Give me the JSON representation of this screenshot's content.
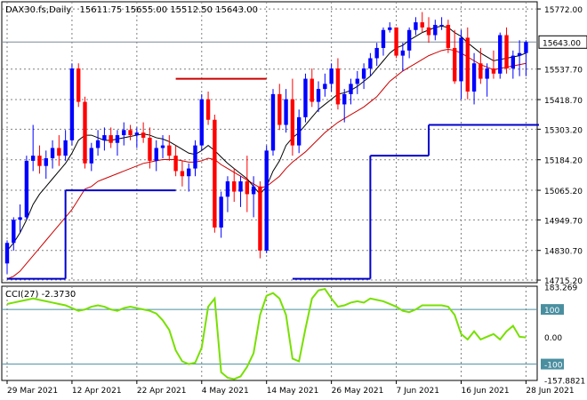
{
  "header": {
    "symbol": "DAX30.fs,Daily",
    "ohlc": "15611.75 15655.00 15512.50 15643.00"
  },
  "colors": {
    "bull": "#0000ff",
    "bear": "#ff0000",
    "ma_fast": "#000000",
    "ma_slow": "#cc0000",
    "support_line": "#0000cc",
    "resistance_line": "#cc0000",
    "cci_line": "#77e000",
    "cci_level": "#4a8fa0",
    "grid": "#808080"
  },
  "chart_data": [
    {
      "type": "candlestick",
      "title": "",
      "y_ticks": [
        15772.0,
        15537.7,
        15418.7,
        15303.2,
        15184.2,
        15065.2,
        14949.7,
        14830.7,
        14715.2
      ],
      "y_tick_labels": [
        "15772.00",
        "15537.70",
        "15418.70",
        "15303.20",
        "15184.20",
        "15065.20",
        "14949.70",
        "14830.70",
        "14715.20"
      ],
      "ylim": [
        14705,
        15800
      ],
      "current_price": 15643.0,
      "current_price_label": "15643.00",
      "x_labels": [
        {
          "bar": 0,
          "label": "29 Mar 2021"
        },
        {
          "bar": 10,
          "label": "12 Apr 2021"
        },
        {
          "bar": 20,
          "label": "22 Apr 2021"
        },
        {
          "bar": 30,
          "label": "4 May 2021"
        },
        {
          "bar": 40,
          "label": "14 May 2021"
        },
        {
          "bar": 50,
          "label": "26 May 2021"
        },
        {
          "bar": 60,
          "label": "7 Jun 2021"
        },
        {
          "bar": 70,
          "label": "16 Jun 2021"
        },
        {
          "bar": 80,
          "label": "28 Jun 2021"
        }
      ],
      "ohlc": [
        [
          14780,
          14870,
          14740,
          14860
        ],
        [
          14860,
          14960,
          14830,
          14950
        ],
        [
          14950,
          15010,
          14900,
          14960
        ],
        [
          14960,
          15200,
          14950,
          15180
        ],
        [
          15180,
          15320,
          15140,
          15200
        ],
        [
          15200,
          15240,
          15130,
          15160
        ],
        [
          15160,
          15220,
          15110,
          15190
        ],
        [
          15190,
          15260,
          15150,
          15230
        ],
        [
          15230,
          15280,
          15160,
          15200
        ],
        [
          15200,
          15300,
          15180,
          15260
        ],
        [
          15260,
          15560,
          15240,
          15540
        ],
        [
          15540,
          15560,
          15390,
          15410
        ],
        [
          15410,
          15430,
          15150,
          15170
        ],
        [
          15170,
          15250,
          15140,
          15230
        ],
        [
          15230,
          15300,
          15200,
          15260
        ],
        [
          15260,
          15310,
          15220,
          15280
        ],
        [
          15280,
          15310,
          15230,
          15250
        ],
        [
          15250,
          15300,
          15200,
          15280
        ],
        [
          15280,
          15330,
          15240,
          15300
        ],
        [
          15300,
          15320,
          15260,
          15280
        ],
        [
          15280,
          15310,
          15230,
          15290
        ],
        [
          15290,
          15330,
          15250,
          15270
        ],
        [
          15270,
          15310,
          15150,
          15180
        ],
        [
          15180,
          15260,
          15140,
          15230
        ],
        [
          15230,
          15280,
          15190,
          15240
        ],
        [
          15240,
          15280,
          15180,
          15200
        ],
        [
          15200,
          15240,
          15120,
          15140
        ],
        [
          15140,
          15180,
          15080,
          15120
        ],
        [
          15120,
          15170,
          15060,
          15150
        ],
        [
          15150,
          15260,
          15120,
          15240
        ],
        [
          15240,
          15440,
          15220,
          15420
        ],
        [
          15420,
          15450,
          15320,
          15340
        ],
        [
          15340,
          15360,
          14900,
          14920
        ],
        [
          14920,
          15060,
          14880,
          15040
        ],
        [
          15040,
          15120,
          14980,
          15100
        ],
        [
          15100,
          15150,
          15020,
          15060
        ],
        [
          15060,
          15120,
          15000,
          15100
        ],
        [
          15100,
          15200,
          14980,
          15050
        ],
        [
          15050,
          15120,
          14960,
          15080
        ],
        [
          15080,
          15100,
          14800,
          14830
        ],
        [
          14830,
          15240,
          14820,
          15220
        ],
        [
          15220,
          15460,
          15200,
          15440
        ],
        [
          15440,
          15480,
          15300,
          15320
        ],
        [
          15320,
          15460,
          15290,
          15420
        ],
        [
          15420,
          15500,
          15200,
          15240
        ],
        [
          15240,
          15380,
          15210,
          15350
        ],
        [
          15350,
          15520,
          15330,
          15500
        ],
        [
          15500,
          15540,
          15390,
          15410
        ],
        [
          15410,
          15490,
          15370,
          15460
        ],
        [
          15460,
          15520,
          15430,
          15480
        ],
        [
          15480,
          15560,
          15450,
          15540
        ],
        [
          15540,
          15580,
          15380,
          15400
        ],
        [
          15400,
          15460,
          15330,
          15440
        ],
        [
          15440,
          15500,
          15400,
          15480
        ],
        [
          15480,
          15530,
          15440,
          15500
        ],
        [
          15500,
          15560,
          15460,
          15540
        ],
        [
          15540,
          15600,
          15510,
          15580
        ],
        [
          15580,
          15640,
          15550,
          15620
        ],
        [
          15620,
          15700,
          15590,
          15690
        ],
        [
          15690,
          15720,
          15680,
          15700
        ],
        [
          15700,
          15700,
          15580,
          15590
        ],
        [
          15590,
          15640,
          15530,
          15610
        ],
        [
          15610,
          15700,
          15580,
          15690
        ],
        [
          15690,
          15740,
          15670,
          15720
        ],
        [
          15720,
          15760,
          15680,
          15700
        ],
        [
          15700,
          15740,
          15640,
          15670
        ],
        [
          15670,
          15730,
          15650,
          15710
        ],
        [
          15710,
          15740,
          15690,
          15710
        ],
        [
          15710,
          15730,
          15600,
          15620
        ],
        [
          15620,
          15690,
          15480,
          15490
        ],
        [
          15490,
          15690,
          15420,
          15660
        ],
        [
          15660,
          15700,
          15420,
          15450
        ],
        [
          15450,
          15600,
          15400,
          15560
        ],
        [
          15560,
          15620,
          15480,
          15500
        ],
        [
          15500,
          15560,
          15430,
          15540
        ],
        [
          15540,
          15610,
          15500,
          15520
        ],
        [
          15520,
          15680,
          15500,
          15670
        ],
        [
          15670,
          15700,
          15520,
          15540
        ],
        [
          15540,
          15610,
          15500,
          15590
        ],
        [
          15590,
          15650,
          15510,
          15600
        ],
        [
          15600,
          15650,
          15510,
          15643
        ]
      ],
      "ma_fast": [
        14830,
        14860,
        14900,
        14950,
        15010,
        15050,
        15080,
        15110,
        15140,
        15170,
        15210,
        15260,
        15280,
        15280,
        15270,
        15260,
        15260,
        15265,
        15270,
        15275,
        15280,
        15285,
        15280,
        15270,
        15265,
        15255,
        15240,
        15225,
        15210,
        15205,
        15220,
        15240,
        15220,
        15195,
        15170,
        15150,
        15130,
        15110,
        15080,
        15050,
        15080,
        15140,
        15180,
        15240,
        15270,
        15290,
        15320,
        15350,
        15380,
        15400,
        15420,
        15440,
        15445,
        15455,
        15470,
        15490,
        15510,
        15540,
        15570,
        15600,
        15620,
        15630,
        15650,
        15665,
        15680,
        15690,
        15700,
        15705,
        15700,
        15680,
        15665,
        15640,
        15620,
        15600,
        15585,
        15570,
        15575,
        15580,
        15585,
        15590,
        15600
      ],
      "ma_slow": [
        14720,
        14730,
        14750,
        14780,
        14810,
        14840,
        14870,
        14900,
        14930,
        14960,
        14990,
        15030,
        15070,
        15080,
        15100,
        15110,
        15120,
        15130,
        15140,
        15150,
        15160,
        15170,
        15175,
        15180,
        15185,
        15185,
        15185,
        15180,
        15175,
        15175,
        15180,
        15190,
        15185,
        15165,
        15150,
        15135,
        15120,
        15105,
        15090,
        15075,
        15080,
        15100,
        15120,
        15150,
        15175,
        15195,
        15215,
        15240,
        15265,
        15290,
        15310,
        15330,
        15345,
        15360,
        15375,
        15390,
        15410,
        15430,
        15460,
        15490,
        15510,
        15530,
        15545,
        15560,
        15575,
        15590,
        15600,
        15610,
        15615,
        15610,
        15600,
        15585,
        15570,
        15555,
        15545,
        15535,
        15540,
        15545,
        15550,
        15555,
        15560
      ],
      "support_line": [
        {
          "from_bar": 0,
          "to_bar": 9,
          "value": 14720
        },
        {
          "from_bar": 9,
          "to_bar": 26,
          "value": 15065
        },
        {
          "from_bar": 44,
          "to_bar": 56,
          "value": 14720
        },
        {
          "from_bar": 56,
          "to_bar": 65,
          "value": 15200
        },
        {
          "from_bar": 65,
          "to_bar": 82,
          "value": 15320
        }
      ],
      "resistance_line": {
        "from_bar": 26,
        "to_bar": 40,
        "value": 15500
      }
    },
    {
      "type": "line",
      "title": "",
      "indicator_label": "CCI(27) -2.3730",
      "y_ticks": [
        183.269,
        100,
        0.0,
        -100,
        -157.8821
      ],
      "y_tick_labels": [
        "183.269",
        "100",
        "0.00",
        "-100",
        "-157.8821"
      ],
      "levels": [
        100,
        0,
        -100
      ],
      "ylim": [
        -160,
        185
      ],
      "values": [
        120,
        125,
        130,
        135,
        140,
        135,
        130,
        125,
        120,
        115,
        105,
        95,
        100,
        110,
        115,
        110,
        100,
        95,
        105,
        110,
        105,
        100,
        95,
        85,
        60,
        25,
        -50,
        -90,
        -100,
        -95,
        -40,
        110,
        140,
        -130,
        -150,
        -155,
        -145,
        -110,
        -60,
        80,
        150,
        160,
        140,
        80,
        -80,
        -90,
        30,
        140,
        170,
        175,
        140,
        110,
        115,
        125,
        130,
        125,
        140,
        135,
        130,
        120,
        110,
        95,
        90,
        100,
        115,
        115,
        115,
        115,
        110,
        80,
        10,
        -10,
        20,
        -10,
        0,
        10,
        -10,
        20,
        40,
        0,
        -2.373
      ]
    }
  ]
}
